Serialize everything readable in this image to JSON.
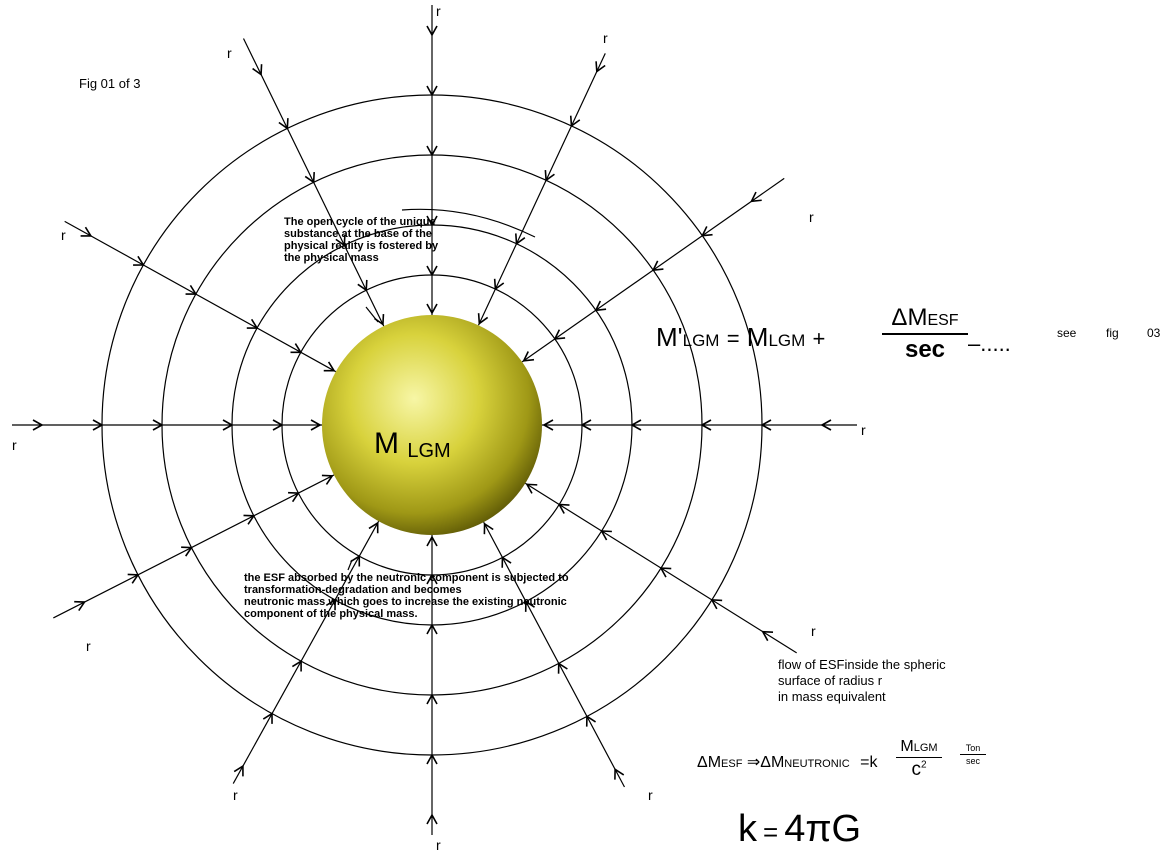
{
  "figure": {
    "label": "Fig 01 of 3",
    "mass_label_main": "M",
    "mass_label_sub": "LGM",
    "ray_label": "r",
    "colors": {
      "line": "#000000",
      "sphere_light": "#f7f6a6",
      "sphere_mid": "#c9c22a",
      "sphere_dark": "#5f5a06"
    }
  },
  "notes": {
    "top": [
      "The open cycle of the unique",
      "substance at the base of the",
      "physical reality is fostered by",
      "the physical mass"
    ],
    "bottom": [
      "the ESF absorbed by the neutronic component is subjected to",
      "transformation-degradation and becomes",
      "neutronic mass which goes to increase the existing neutronic",
      "component of the physical mass."
    ]
  },
  "equation1": {
    "lhs_main": "M'",
    "lhs_sub": "LGM",
    "eq": "=",
    "term_main": "M",
    "term_sub": "LGM",
    "plus": "+",
    "frac_num_main": "ΔM",
    "frac_num_sub": "ESF",
    "frac_den": "sec",
    "dots": "–.....",
    "see": "see",
    "fig": "fig",
    "fig_num": "03"
  },
  "flow_text": [
    "flow of ESFinside the spheric",
    "surface of radius r",
    "in mass equivalent"
  ],
  "equation2": {
    "lhs_main": "ΔM",
    "lhs_sub": "ESF",
    "arrow": "⇒",
    "rhs_main": "ΔM",
    "rhs_sub": "NEUTRONIC",
    "eq_k": "=k",
    "frac_num_main": "M",
    "frac_num_sub": "LGM",
    "frac_den_main": "c",
    "frac_den_sup": "2",
    "unit_num": "Ton",
    "unit_den": "sec"
  },
  "equation3": {
    "text_k": "k",
    "text_eq": "=",
    "text_rhs": "4πG"
  }
}
